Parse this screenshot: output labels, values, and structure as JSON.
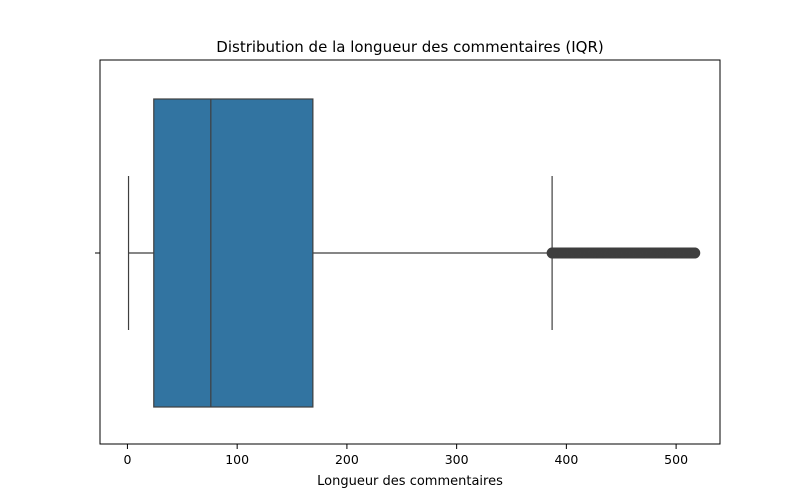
{
  "chart_data": {
    "type": "box",
    "title": "Distribution de la longueur des commentaires (IQR)",
    "xlabel": "Longueur des commentaires",
    "ylabel": "",
    "orientation": "horizontal",
    "xlim": [
      -25,
      540
    ],
    "x_ticks": [
      0,
      100,
      200,
      300,
      400,
      500
    ],
    "x_tick_labels": [
      "0",
      "100",
      "200",
      "300",
      "400",
      "500"
    ],
    "grid": false,
    "box": {
      "whisker_low": 1,
      "q1": 24,
      "median": 76,
      "q3": 169,
      "whisker_high": 387,
      "outliers_range": [
        387,
        517
      ],
      "color": "#3274a1",
      "line_color": "#3f3f3f"
    }
  }
}
